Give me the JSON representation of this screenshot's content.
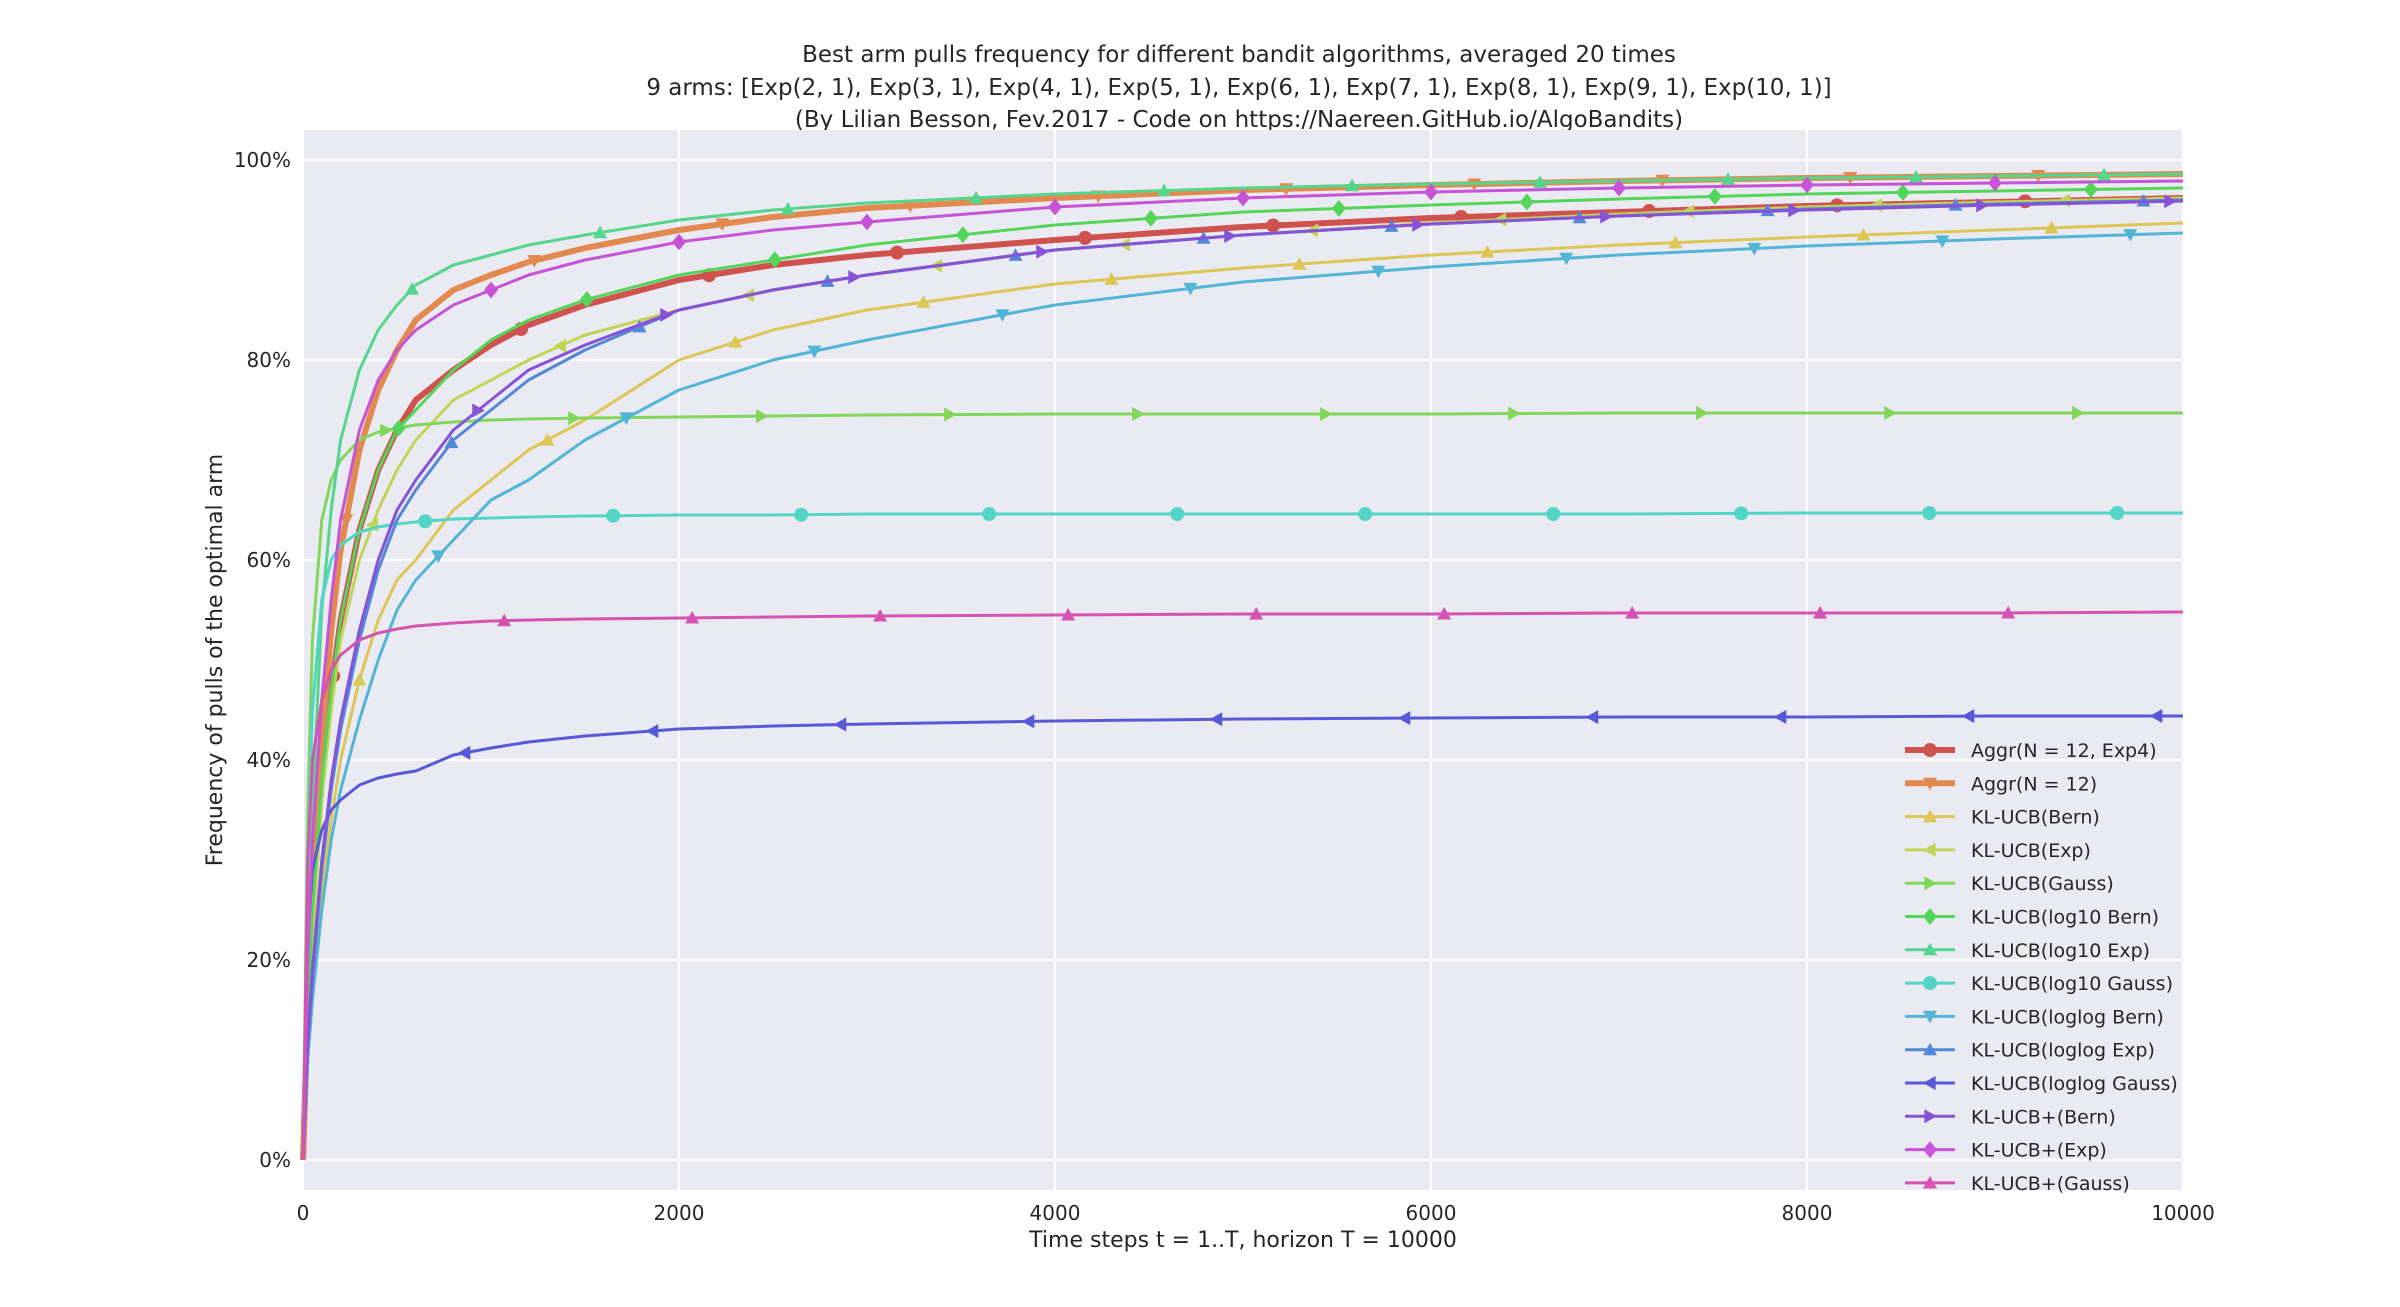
{
  "chart_data": {
    "type": "line",
    "title": "Best arm pulls frequency for different bandit algorithms, averaged 20 times",
    "subtitle": "9 arms: [Exp(2, 1), Exp(3, 1), Exp(4, 1), Exp(5, 1), Exp(6, 1), Exp(7, 1), Exp(8, 1), Exp(9, 1), Exp(10, 1)]",
    "credit": "(By Lilian Besson, Fev.2017 - Code on https://Naereen.GitHub.io/AlgoBandits)",
    "xlabel": "Time steps t = 1..T, horizon T = 10000",
    "ylabel": "Frequency of pulls of the optimal arm",
    "xlim": [
      0,
      10000
    ],
    "ylim": [
      -0.03,
      1.03
    ],
    "x_ticks": [
      "0",
      "2000",
      "4000",
      "6000",
      "8000",
      "10000"
    ],
    "y_ticks": [
      "0%",
      "20%",
      "40%",
      "60%",
      "80%",
      "100%"
    ],
    "grid": true,
    "legend_position": "lower-right",
    "background_color": "#eaeaf2",
    "x": [
      0,
      25,
      50,
      100,
      150,
      200,
      300,
      400,
      500,
      600,
      800,
      1000,
      1200,
      1500,
      2000,
      2500,
      3000,
      4000,
      5000,
      6000,
      7000,
      8000,
      9000,
      10000
    ],
    "series": [
      {
        "name": "Aggr(N = 12, Exp4)",
        "color": "#d0524f",
        "marker": "circle",
        "width": 6,
        "values": [
          0,
          0.15,
          0.25,
          0.38,
          0.47,
          0.54,
          0.63,
          0.69,
          0.73,
          0.76,
          0.79,
          0.815,
          0.835,
          0.855,
          0.88,
          0.895,
          0.905,
          0.92,
          0.933,
          0.942,
          0.948,
          0.954,
          0.958,
          0.962
        ]
      },
      {
        "name": "Aggr(N = 12)",
        "color": "#e1894f",
        "marker": "tri_down",
        "width": 6,
        "values": [
          0,
          0.15,
          0.26,
          0.42,
          0.53,
          0.61,
          0.71,
          0.77,
          0.81,
          0.84,
          0.87,
          0.885,
          0.898,
          0.912,
          0.93,
          0.943,
          0.952,
          0.962,
          0.97,
          0.975,
          0.979,
          0.982,
          0.984,
          0.986
        ]
      },
      {
        "name": "KL-UCB(Bern)",
        "color": "#dcc656",
        "marker": "triangle_up",
        "width": 3,
        "values": [
          0,
          0.1,
          0.17,
          0.27,
          0.34,
          0.4,
          0.48,
          0.54,
          0.58,
          0.6,
          0.65,
          0.68,
          0.71,
          0.74,
          0.8,
          0.83,
          0.85,
          0.876,
          0.892,
          0.905,
          0.915,
          0.923,
          0.93,
          0.937
        ]
      },
      {
        "name": "KL-UCB(Exp)",
        "color": "#c2d458",
        "marker": "tri_left",
        "width": 3,
        "values": [
          0,
          0.13,
          0.22,
          0.36,
          0.45,
          0.52,
          0.6,
          0.65,
          0.69,
          0.72,
          0.76,
          0.78,
          0.8,
          0.825,
          0.85,
          0.87,
          0.885,
          0.91,
          0.925,
          0.937,
          0.946,
          0.953,
          0.958,
          0.962
        ]
      },
      {
        "name": "KL-UCB(Gauss)",
        "color": "#82d65a",
        "marker": "tri_right",
        "width": 3,
        "values": [
          0,
          0.35,
          0.52,
          0.64,
          0.68,
          0.7,
          0.72,
          0.728,
          0.732,
          0.735,
          0.738,
          0.74,
          0.741,
          0.742,
          0.743,
          0.744,
          0.745,
          0.746,
          0.746,
          0.746,
          0.747,
          0.747,
          0.747,
          0.747
        ]
      },
      {
        "name": "KL-UCB(log10 Bern)",
        "color": "#53d559",
        "marker": "diamond",
        "width": 3,
        "values": [
          0,
          0.15,
          0.25,
          0.38,
          0.47,
          0.54,
          0.63,
          0.69,
          0.73,
          0.75,
          0.79,
          0.82,
          0.84,
          0.86,
          0.885,
          0.9,
          0.915,
          0.935,
          0.948,
          0.955,
          0.961,
          0.966,
          0.969,
          0.972
        ]
      },
      {
        "name": "KL-UCB(log10 Exp)",
        "color": "#55d68d",
        "marker": "tri_up",
        "width": 3,
        "values": [
          0,
          0.2,
          0.35,
          0.55,
          0.65,
          0.72,
          0.79,
          0.83,
          0.855,
          0.875,
          0.895,
          0.905,
          0.915,
          0.925,
          0.94,
          0.95,
          0.957,
          0.966,
          0.972,
          0.976,
          0.979,
          0.982,
          0.984,
          0.986
        ]
      },
      {
        "name": "KL-UCB(log10 Gauss)",
        "color": "#52d5c4",
        "marker": "circle",
        "width": 3,
        "values": [
          0,
          0.3,
          0.45,
          0.56,
          0.6,
          0.615,
          0.628,
          0.633,
          0.636,
          0.638,
          0.641,
          0.642,
          0.643,
          0.644,
          0.645,
          0.645,
          0.646,
          0.646,
          0.646,
          0.646,
          0.646,
          0.647,
          0.647,
          0.647
        ]
      },
      {
        "name": "KL-UCB(loglog Bern)",
        "color": "#53b5d6",
        "marker": "tri_down",
        "width": 3,
        "values": [
          0,
          0.1,
          0.16,
          0.25,
          0.32,
          0.37,
          0.44,
          0.5,
          0.55,
          0.58,
          0.62,
          0.66,
          0.68,
          0.72,
          0.77,
          0.8,
          0.82,
          0.855,
          0.878,
          0.893,
          0.905,
          0.914,
          0.921,
          0.927
        ]
      },
      {
        "name": "KL-UCB(loglog Exp)",
        "color": "#5488d7",
        "marker": "tri_up",
        "width": 3,
        "values": [
          0,
          0.11,
          0.18,
          0.29,
          0.37,
          0.43,
          0.52,
          0.59,
          0.64,
          0.67,
          0.72,
          0.75,
          0.78,
          0.81,
          0.85,
          0.87,
          0.885,
          0.91,
          0.925,
          0.936,
          0.944,
          0.951,
          0.956,
          0.96
        ]
      },
      {
        "name": "KL-UCB(loglog Gauss)",
        "color": "#5759d7",
        "marker": "tri_left",
        "width": 3,
        "values": [
          0,
          0.22,
          0.29,
          0.33,
          0.35,
          0.36,
          0.375,
          0.382,
          0.386,
          0.389,
          0.405,
          0.412,
          0.418,
          0.424,
          0.431,
          0.434,
          0.436,
          0.439,
          0.441,
          0.442,
          0.443,
          0.443,
          0.444,
          0.444
        ]
      },
      {
        "name": "KL-UCB+(Bern)",
        "color": "#8652d6",
        "marker": "tri_right",
        "width": 3,
        "values": [
          0,
          0.12,
          0.19,
          0.3,
          0.38,
          0.44,
          0.53,
          0.6,
          0.65,
          0.68,
          0.73,
          0.76,
          0.79,
          0.815,
          0.85,
          0.87,
          0.885,
          0.91,
          0.925,
          0.936,
          0.944,
          0.95,
          0.955,
          0.959
        ]
      },
      {
        "name": "KL-UCB+(Exp)",
        "color": "#c753d6",
        "marker": "diamond",
        "width": 3,
        "values": [
          0,
          0.2,
          0.32,
          0.46,
          0.56,
          0.64,
          0.73,
          0.78,
          0.81,
          0.83,
          0.855,
          0.87,
          0.885,
          0.9,
          0.918,
          0.93,
          0.938,
          0.953,
          0.962,
          0.968,
          0.972,
          0.975,
          0.977,
          0.979
        ]
      },
      {
        "name": "KL-UCB+(Gauss)",
        "color": "#d654b1",
        "marker": "tri_up",
        "width": 3,
        "values": [
          0,
          0.3,
          0.4,
          0.46,
          0.49,
          0.505,
          0.52,
          0.527,
          0.531,
          0.534,
          0.537,
          0.539,
          0.54,
          0.541,
          0.542,
          0.543,
          0.544,
          0.545,
          0.546,
          0.546,
          0.547,
          0.547,
          0.547,
          0.548
        ]
      }
    ]
  }
}
